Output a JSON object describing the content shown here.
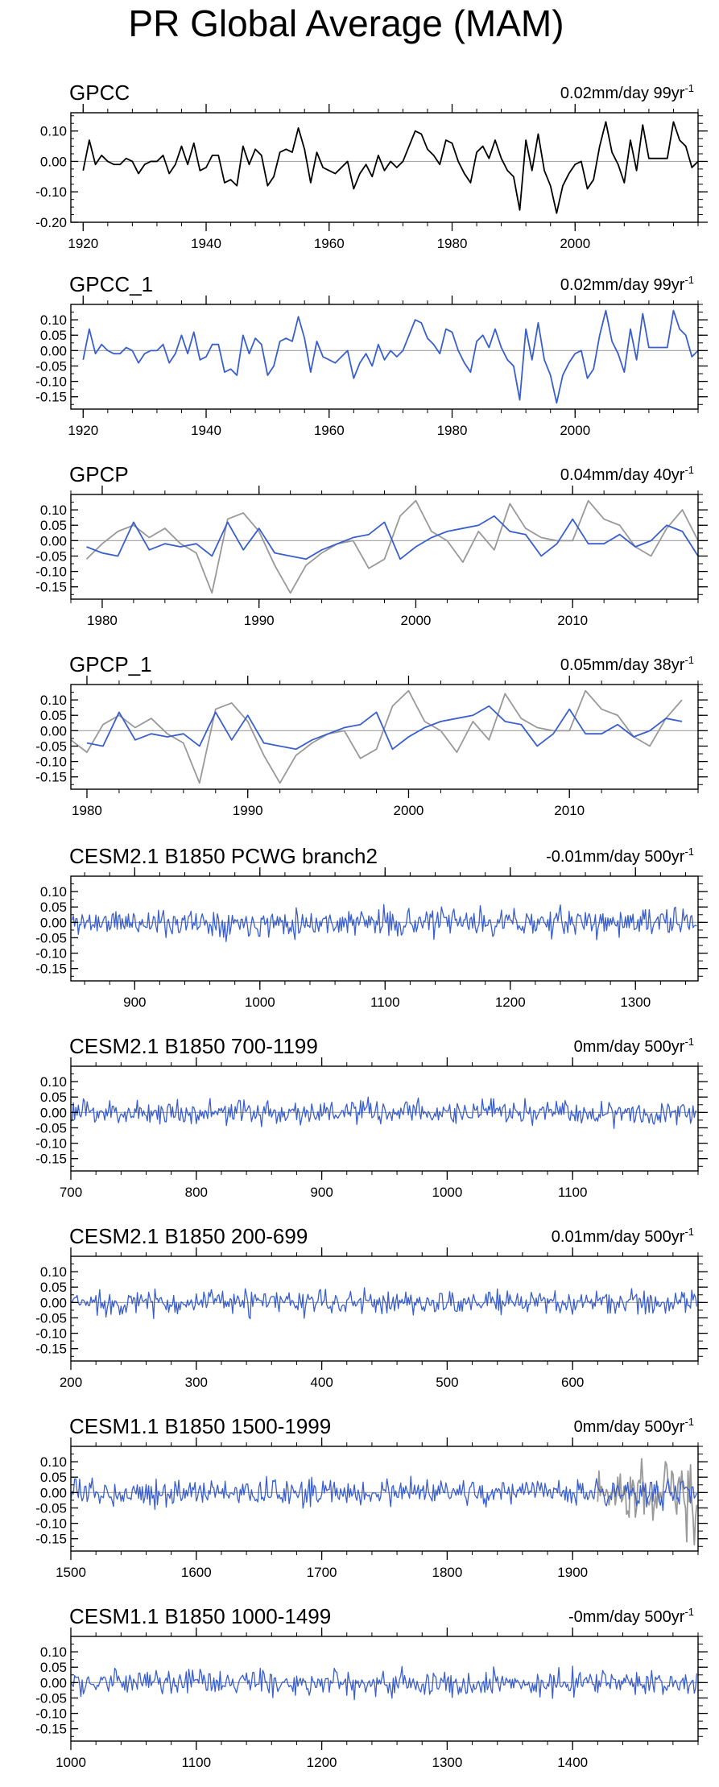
{
  "title": "PR Global Average (MAM)",
  "colors": {
    "obs": "#000000",
    "model": "#3a5fcd",
    "overlay": "#999999",
    "zero_line": "#aaaaaa"
  },
  "chart_data": [
    {
      "type": "line",
      "title": "GPCC",
      "trend_label": "0.02mm/day 99yr",
      "trend_unit_sup": "-1",
      "xlim": [
        1918,
        2020
      ],
      "ylim": [
        -0.2,
        0.16
      ],
      "xticks": [
        1920,
        1940,
        1960,
        1980,
        2000
      ],
      "yticks": [
        {
          "v": 0.1,
          "label": "0.10"
        },
        {
          "v": 0.0,
          "label": "0.00"
        },
        {
          "v": -0.1,
          "label": "-0.10"
        },
        {
          "v": -0.2,
          "label": "-0.20"
        }
      ],
      "series": [
        {
          "name": "GPCC",
          "color": "obs",
          "x_start": 1920,
          "x_step": 1,
          "values": [
            -0.03,
            0.07,
            -0.01,
            0.02,
            0.0,
            -0.01,
            -0.01,
            0.01,
            0.0,
            -0.04,
            -0.01,
            0.0,
            0.0,
            0.02,
            -0.04,
            -0.01,
            0.05,
            -0.01,
            0.06,
            -0.03,
            -0.02,
            0.02,
            0.02,
            -0.07,
            -0.06,
            -0.08,
            0.05,
            -0.01,
            0.04,
            0.02,
            -0.08,
            -0.05,
            0.03,
            0.04,
            0.03,
            0.11,
            0.04,
            -0.07,
            0.03,
            -0.02,
            -0.03,
            -0.04,
            -0.02,
            0.0,
            -0.09,
            -0.04,
            -0.01,
            -0.05,
            0.02,
            -0.03,
            0.0,
            -0.02,
            0.0,
            0.05,
            0.1,
            0.09,
            0.04,
            0.02,
            -0.01,
            0.07,
            0.06,
            0.0,
            -0.04,
            -0.07,
            0.03,
            0.05,
            0.01,
            0.07,
            0.01,
            -0.03,
            -0.05,
            -0.16,
            0.07,
            -0.03,
            0.09,
            -0.03,
            -0.08,
            -0.17,
            -0.08,
            -0.04,
            -0.01,
            0.0,
            -0.09,
            -0.06,
            0.05,
            0.13,
            0.03,
            -0.01,
            -0.07,
            0.07,
            -0.03,
            0.12,
            0.01,
            0.01,
            0.01,
            0.01,
            0.13,
            0.07,
            0.05,
            -0.02,
            0.0
          ]
        }
      ]
    },
    {
      "type": "line",
      "title": "GPCC_1",
      "trend_label": "0.02mm/day 99yr",
      "trend_unit_sup": "-1",
      "xlim": [
        1918,
        2020
      ],
      "ylim": [
        -0.19,
        0.15
      ],
      "xticks": [
        1920,
        1940,
        1960,
        1980,
        2000
      ],
      "yticks": [
        {
          "v": 0.1,
          "label": "0.10"
        },
        {
          "v": 0.05,
          "label": "0.05"
        },
        {
          "v": 0.0,
          "label": "0.00"
        },
        {
          "v": -0.05,
          "label": "-0.05"
        },
        {
          "v": -0.1,
          "label": "-0.10"
        },
        {
          "v": -0.15,
          "label": "-0.15"
        }
      ],
      "series": [
        {
          "name": "GPCC_1",
          "color": "model",
          "x_start": 1920,
          "x_step": 1,
          "values": [
            -0.03,
            0.07,
            -0.01,
            0.02,
            0.0,
            -0.01,
            -0.01,
            0.01,
            0.0,
            -0.04,
            -0.01,
            0.0,
            0.0,
            0.02,
            -0.04,
            -0.01,
            0.05,
            -0.01,
            0.06,
            -0.03,
            -0.02,
            0.02,
            0.02,
            -0.07,
            -0.06,
            -0.08,
            0.05,
            -0.01,
            0.04,
            0.02,
            -0.08,
            -0.05,
            0.03,
            0.04,
            0.03,
            0.11,
            0.04,
            -0.07,
            0.03,
            -0.02,
            -0.03,
            -0.04,
            -0.02,
            0.0,
            -0.09,
            -0.04,
            -0.01,
            -0.05,
            0.02,
            -0.03,
            0.0,
            -0.02,
            0.0,
            0.05,
            0.1,
            0.09,
            0.04,
            0.02,
            -0.01,
            0.07,
            0.06,
            0.0,
            -0.04,
            -0.07,
            0.03,
            0.05,
            0.01,
            0.07,
            0.01,
            -0.03,
            -0.05,
            -0.16,
            0.07,
            -0.03,
            0.09,
            -0.03,
            -0.08,
            -0.17,
            -0.08,
            -0.04,
            -0.01,
            0.0,
            -0.09,
            -0.06,
            0.05,
            0.13,
            0.03,
            -0.01,
            -0.07,
            0.07,
            -0.03,
            0.12,
            0.01,
            0.01,
            0.01,
            0.01,
            0.13,
            0.07,
            0.05,
            -0.02,
            0.0
          ]
        }
      ]
    },
    {
      "type": "line",
      "title": "GPCP",
      "trend_label": "0.04mm/day 40yr",
      "trend_unit_sup": "-1",
      "xlim": [
        1978,
        2018
      ],
      "ylim": [
        -0.19,
        0.15
      ],
      "xticks": [
        1980,
        1990,
        2000,
        2010
      ],
      "yticks": [
        {
          "v": 0.1,
          "label": "0.10"
        },
        {
          "v": 0.05,
          "label": "0.05"
        },
        {
          "v": 0.0,
          "label": "0.00"
        },
        {
          "v": -0.05,
          "label": "-0.05"
        },
        {
          "v": -0.1,
          "label": "-0.10"
        },
        {
          "v": -0.15,
          "label": "-0.15"
        }
      ],
      "series": [
        {
          "name": "GPCC overlay",
          "color": "overlay",
          "x_start": 1979,
          "x_step": 1,
          "values": [
            -0.06,
            -0.01,
            0.03,
            0.05,
            0.01,
            0.04,
            -0.01,
            -0.04,
            -0.17,
            0.07,
            0.09,
            0.03,
            -0.08,
            -0.17,
            -0.08,
            -0.04,
            -0.01,
            0.0,
            -0.09,
            -0.06,
            0.08,
            0.13,
            0.03,
            0.0,
            -0.07,
            0.03,
            -0.03,
            0.12,
            0.04,
            0.01,
            0.0,
            0.0,
            0.13,
            0.07,
            0.05,
            -0.02,
            -0.05,
            0.04,
            0.1,
            0.0
          ]
        },
        {
          "name": "GPCP",
          "color": "model",
          "x_start": 1979,
          "x_step": 1,
          "values": [
            -0.02,
            -0.04,
            -0.05,
            0.06,
            -0.03,
            -0.01,
            -0.02,
            -0.01,
            -0.05,
            0.06,
            -0.03,
            0.04,
            -0.04,
            -0.05,
            -0.06,
            -0.03,
            -0.01,
            0.01,
            0.02,
            0.06,
            -0.06,
            -0.02,
            0.01,
            0.03,
            0.04,
            0.05,
            0.08,
            0.03,
            0.02,
            -0.05,
            -0.01,
            0.07,
            -0.01,
            -0.01,
            0.02,
            -0.02,
            0.0,
            0.05,
            0.03,
            -0.05
          ]
        }
      ]
    },
    {
      "type": "line",
      "title": "GPCP_1",
      "trend_label": "0.05mm/day 38yr",
      "trend_unit_sup": "-1",
      "xlim": [
        1979,
        2018
      ],
      "ylim": [
        -0.19,
        0.15
      ],
      "xticks": [
        1980,
        1990,
        2000,
        2010
      ],
      "yticks": [
        {
          "v": 0.1,
          "label": "0.10"
        },
        {
          "v": 0.05,
          "label": "0.05"
        },
        {
          "v": 0.0,
          "label": "0.00"
        },
        {
          "v": -0.05,
          "label": "-0.05"
        },
        {
          "v": -0.1,
          "label": "-0.10"
        },
        {
          "v": -0.15,
          "label": "-0.15"
        }
      ],
      "series": [
        {
          "name": "GPCC overlay",
          "color": "overlay",
          "x_start": 1979,
          "x_step": 1,
          "values": [
            -0.03,
            -0.07,
            0.02,
            0.05,
            0.01,
            0.04,
            -0.01,
            -0.04,
            -0.17,
            0.07,
            0.09,
            0.03,
            -0.08,
            -0.17,
            -0.08,
            -0.04,
            -0.01,
            0.0,
            -0.09,
            -0.06,
            0.08,
            0.13,
            0.03,
            0.0,
            -0.07,
            0.03,
            -0.03,
            0.12,
            0.04,
            0.01,
            0.0,
            0.0,
            0.13,
            0.07,
            0.05,
            -0.02,
            -0.05,
            0.04,
            0.1
          ]
        },
        {
          "name": "GPCP_1",
          "color": "model",
          "x_start": 1980,
          "x_step": 1,
          "values": [
            -0.04,
            -0.05,
            0.06,
            -0.03,
            -0.01,
            -0.02,
            -0.01,
            -0.05,
            0.06,
            -0.03,
            0.05,
            -0.04,
            -0.05,
            -0.06,
            -0.03,
            -0.01,
            0.01,
            0.02,
            0.06,
            -0.06,
            -0.02,
            0.01,
            0.03,
            0.04,
            0.05,
            0.08,
            0.03,
            0.02,
            -0.05,
            -0.01,
            0.07,
            -0.01,
            -0.01,
            0.02,
            -0.02,
            0.0,
            0.04,
            0.03
          ]
        }
      ]
    },
    {
      "type": "line",
      "title": "CESM2.1 B1850 PCWG branch2",
      "trend_label": "-0.01mm/day 500yr",
      "trend_unit_sup": "-1",
      "xlim": [
        849,
        1350
      ],
      "ylim": [
        -0.19,
        0.15
      ],
      "xticks": [
        900,
        1000,
        1100,
        1200,
        1300
      ],
      "yticks": [
        {
          "v": 0.1,
          "label": "0.10"
        },
        {
          "v": 0.05,
          "label": "0.05"
        },
        {
          "v": 0.0,
          "label": "0.00"
        },
        {
          "v": -0.05,
          "label": "-0.05"
        },
        {
          "v": -0.1,
          "label": "-0.10"
        },
        {
          "v": -0.15,
          "label": "-0.15"
        }
      ],
      "series": [
        {
          "name": "CESM2.1 B1850 PCWG branch2",
          "color": "model",
          "x_start": 850,
          "x_step": 1,
          "n": 500,
          "amplitude": 0.022,
          "seed": 11
        }
      ]
    },
    {
      "type": "line",
      "title": "CESM2.1 B1850 700-1199",
      "trend_label": "0mm/day 500yr",
      "trend_unit_sup": "-1",
      "xlim": [
        700,
        1200
      ],
      "ylim": [
        -0.19,
        0.15
      ],
      "xticks": [
        700,
        800,
        900,
        1000,
        1100
      ],
      "yticks": [
        {
          "v": 0.1,
          "label": "0.10"
        },
        {
          "v": 0.05,
          "label": "0.05"
        },
        {
          "v": 0.0,
          "label": "0.00"
        },
        {
          "v": -0.05,
          "label": "-0.05"
        },
        {
          "v": -0.1,
          "label": "-0.10"
        },
        {
          "v": -0.15,
          "label": "-0.15"
        }
      ],
      "series": [
        {
          "name": "CESM2.1 B1850 700-1199",
          "color": "model",
          "x_start": 700,
          "x_step": 1,
          "n": 500,
          "amplitude": 0.02,
          "seed": 23
        }
      ]
    },
    {
      "type": "line",
      "title": "CESM2.1 B1850 200-699",
      "trend_label": "0.01mm/day 500yr",
      "trend_unit_sup": "-1",
      "xlim": [
        200,
        700
      ],
      "ylim": [
        -0.19,
        0.15
      ],
      "xticks": [
        200,
        300,
        400,
        500,
        600
      ],
      "yticks": [
        {
          "v": 0.1,
          "label": "0.10"
        },
        {
          "v": 0.05,
          "label": "0.05"
        },
        {
          "v": 0.0,
          "label": "0.00"
        },
        {
          "v": -0.05,
          "label": "-0.05"
        },
        {
          "v": -0.1,
          "label": "-0.10"
        },
        {
          "v": -0.15,
          "label": "-0.15"
        }
      ],
      "series": [
        {
          "name": "CESM2.1 B1850 200-699",
          "color": "model",
          "x_start": 200,
          "x_step": 1,
          "n": 500,
          "amplitude": 0.02,
          "seed": 37
        }
      ]
    },
    {
      "type": "line",
      "title": "CESM1.1 B1850 1500-1999",
      "trend_label": "0mm/day 500yr",
      "trend_unit_sup": "-1",
      "xlim": [
        1500,
        2000
      ],
      "ylim": [
        -0.19,
        0.15
      ],
      "xticks": [
        1500,
        1600,
        1700,
        1800,
        1900
      ],
      "yticks": [
        {
          "v": 0.1,
          "label": "0.10"
        },
        {
          "v": 0.05,
          "label": "0.05"
        },
        {
          "v": 0.0,
          "label": "0.00"
        },
        {
          "v": -0.05,
          "label": "-0.05"
        },
        {
          "v": -0.1,
          "label": "-0.10"
        },
        {
          "v": -0.15,
          "label": "-0.15"
        }
      ],
      "series": [
        {
          "name": "GPCC overlay",
          "color": "overlay",
          "x_start": 1920,
          "x_step": 1,
          "values": [
            -0.03,
            0.07,
            -0.01,
            0.02,
            0.0,
            -0.01,
            -0.01,
            0.01,
            0.0,
            -0.04,
            -0.01,
            0.0,
            0.0,
            0.02,
            -0.04,
            -0.01,
            0.05,
            -0.01,
            0.06,
            -0.03,
            -0.02,
            0.02,
            0.02,
            -0.07,
            -0.06,
            -0.08,
            0.05,
            -0.01,
            0.04,
            0.02,
            -0.08,
            -0.05,
            0.03,
            0.04,
            0.03,
            0.11,
            0.04,
            -0.07,
            0.03,
            -0.02,
            -0.03,
            -0.04,
            -0.02,
            0.0,
            -0.09,
            -0.04,
            -0.01,
            -0.05,
            0.02,
            -0.03,
            0.0,
            -0.02,
            0.0,
            0.05,
            0.1,
            0.09,
            0.04,
            0.02,
            -0.01,
            0.07,
            0.06,
            0.0,
            -0.04,
            -0.07,
            0.03,
            0.05,
            0.01,
            0.07,
            0.01,
            -0.03,
            -0.05,
            -0.16,
            0.07,
            -0.03,
            0.09,
            -0.03,
            -0.08,
            -0.17,
            -0.08,
            -0.04
          ]
        },
        {
          "name": "CESM1.1 B1850 1500-1999",
          "color": "model",
          "x_start": 1500,
          "x_step": 1,
          "n": 500,
          "amplitude": 0.021,
          "seed": 53
        }
      ]
    },
    {
      "type": "line",
      "title": "CESM1.1 B1850 1000-1499",
      "trend_label": "-0mm/day 500yr",
      "trend_unit_sup": "-1",
      "xlim": [
        1000,
        1500
      ],
      "ylim": [
        -0.19,
        0.15
      ],
      "xticks": [
        1000,
        1100,
        1200,
        1300,
        1400
      ],
      "yticks": [
        {
          "v": 0.1,
          "label": "0.10"
        },
        {
          "v": 0.05,
          "label": "0.05"
        },
        {
          "v": 0.0,
          "label": "0.00"
        },
        {
          "v": -0.05,
          "label": "-0.05"
        },
        {
          "v": -0.1,
          "label": "-0.10"
        },
        {
          "v": -0.15,
          "label": "-0.15"
        }
      ],
      "series": [
        {
          "name": "CESM1.1 B1850 1000-1499",
          "color": "model",
          "x_start": 1000,
          "x_step": 1,
          "n": 500,
          "amplitude": 0.02,
          "seed": 71
        }
      ]
    }
  ]
}
